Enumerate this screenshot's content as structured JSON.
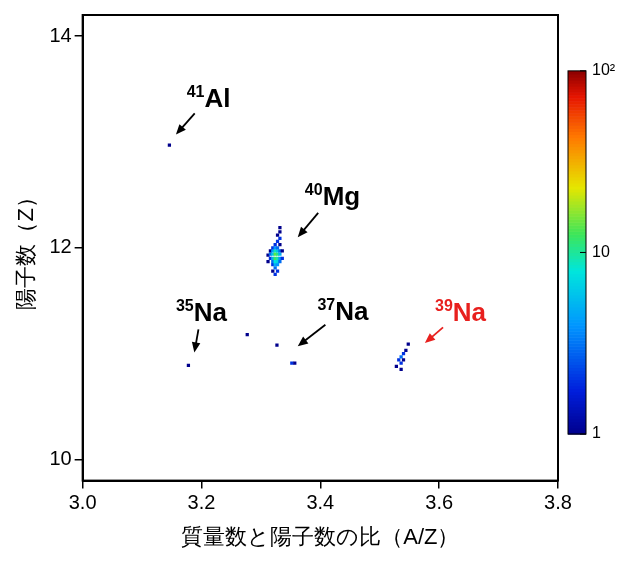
{
  "chart_data": {
    "type": "scatter",
    "x_label": "質量数と陽子数の比（A/Z）",
    "y_label": "陽子数（Z）",
    "xlim": [
      3.0,
      3.8
    ],
    "xticks": [
      {
        "value": 3.0,
        "label": "3.0"
      },
      3.2,
      3.4,
      3.6,
      3.8
    ],
    "ylim": [
      9.8,
      14.2
    ],
    "yticks": [
      10,
      12,
      14
    ],
    "grid": false,
    "marker": "square",
    "x": [
      3.146,
      3.178,
      3.277,
      3.327,
      3.352,
      3.357,
      3.312,
      3.312,
      3.316,
      3.316,
      3.316,
      3.32,
      3.32,
      3.32,
      3.32,
      3.32,
      3.32,
      3.32,
      3.324,
      3.324,
      3.324,
      3.324,
      3.324,
      3.324,
      3.324,
      3.324,
      3.324,
      3.328,
      3.328,
      3.328,
      3.328,
      3.328,
      3.328,
      3.328,
      3.328,
      3.328,
      3.332,
      3.332,
      3.332,
      3.332,
      3.332,
      3.332,
      3.332,
      3.332,
      3.336,
      3.336,
      3.528,
      3.532,
      3.536,
      3.536,
      3.54,
      3.54,
      3.544,
      3.548,
      3.536
    ],
    "y": [
      12.97,
      10.89,
      11.18,
      11.08,
      10.91,
      10.91,
      11.93,
      11.87,
      11.9,
      11.94,
      11.97,
      11.78,
      11.84,
      11.87,
      11.9,
      11.94,
      11.97,
      12.0,
      11.75,
      11.81,
      11.84,
      11.87,
      11.9,
      11.94,
      11.97,
      12.0,
      12.03,
      11.78,
      11.84,
      11.87,
      11.9,
      11.94,
      11.97,
      12.0,
      12.06,
      12.12,
      11.87,
      11.9,
      11.94,
      11.97,
      12.03,
      12.09,
      12.15,
      12.19,
      11.9,
      11.97,
      10.88,
      10.94,
      10.97,
      10.91,
      11.0,
      10.94,
      11.03,
      11.09,
      10.85
    ],
    "counts": [
      1,
      1,
      1,
      1,
      2,
      1,
      1,
      1,
      2,
      3,
      1,
      1,
      2,
      3,
      5,
      6,
      4,
      2,
      2,
      3,
      5,
      8,
      12,
      14,
      9,
      4,
      2,
      2,
      4,
      7,
      10,
      11,
      6,
      3,
      2,
      1,
      3,
      4,
      5,
      3,
      1,
      2,
      1,
      1,
      2,
      1,
      1,
      2,
      3,
      2,
      2,
      1,
      1,
      1,
      1
    ],
    "colorbar": {
      "range": [
        1,
        100
      ],
      "log": true,
      "ticks": [
        1,
        10,
        {
          "value": 100,
          "label": "10²"
        }
      ]
    },
    "annotations": [
      {
        "superscript": "41",
        "text": "Al",
        "xy": [
          3.157,
          13.07
        ],
        "xytext": [
          3.212,
          13.42
        ],
        "color": "#000000"
      },
      {
        "superscript": "40",
        "text": "Mg",
        "xy": [
          3.362,
          12.1
        ],
        "xytext": [
          3.4205,
          12.49
        ],
        "color": "#000000"
      },
      {
        "superscript": "35",
        "text": "Na",
        "xy": [
          3.188,
          11.01
        ],
        "xytext": [
          3.2,
          11.39
        ],
        "color": "#000000"
      },
      {
        "superscript": "37",
        "text": "Na",
        "xy": [
          3.362,
          11.07
        ],
        "xytext": [
          3.438,
          11.4
        ],
        "color": "#000000"
      },
      {
        "superscript": "39",
        "text": "Na",
        "xy": [
          3.576,
          11.1
        ],
        "xytext": [
          3.636,
          11.39
        ],
        "color": "#e8201e"
      }
    ]
  }
}
